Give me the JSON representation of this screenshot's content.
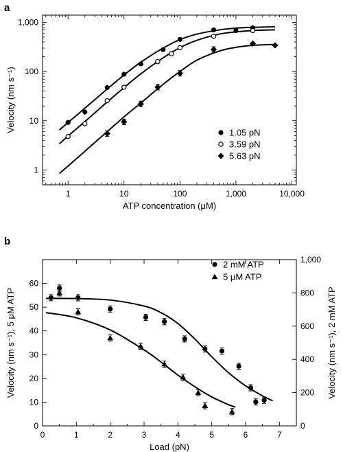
{
  "chart_data": [
    {
      "panel": "a",
      "type": "scatter",
      "xlabel": "ATP concentration (μM)",
      "ylabel": "Velocity (nm s⁻¹)",
      "x_scale": "log",
      "y_scale": "log",
      "xlim": [
        0.35,
        12000
      ],
      "ylim": [
        0.5,
        1400
      ],
      "xticks": [
        1,
        10,
        100,
        1000,
        10000
      ],
      "xtick_labels": [
        "1",
        "10",
        "100",
        "1,000",
        "10,000"
      ],
      "yticks": [
        1,
        10,
        100,
        1000
      ],
      "ytick_labels": [
        "1",
        "10",
        "100",
        "1,000"
      ],
      "legend_position": "bottom-right",
      "series": [
        {
          "name": "1.05 pN",
          "marker": "filled-circle",
          "points": [
            [
              1,
              9.2
            ],
            [
              2,
              15
            ],
            [
              5,
              47
            ],
            [
              10,
              88
            ],
            [
              20,
              143
            ],
            [
              50,
              278
            ],
            [
              100,
              450
            ],
            [
              400,
              700
            ],
            [
              1000,
              680
            ],
            [
              2000,
              770
            ]
          ],
          "fit": [
            [
              0.7,
              6.5
            ],
            [
              1,
              9.2
            ],
            [
              2,
              18
            ],
            [
              5,
              44
            ],
            [
              10,
              85
            ],
            [
              20,
              155
            ],
            [
              50,
              300
            ],
            [
              100,
              445
            ],
            [
              200,
              575
            ],
            [
              500,
              700
            ],
            [
              1000,
              760
            ],
            [
              2000,
              790
            ],
            [
              5000,
              810
            ]
          ]
        },
        {
          "name": "3.59 pN",
          "marker": "open-circle",
          "points": [
            [
              1,
              4.8
            ],
            [
              2,
              8.7
            ],
            [
              5,
              25.5
            ],
            [
              10,
              48
            ],
            [
              40,
              160
            ],
            [
              70,
              230
            ],
            [
              100,
              305
            ],
            [
              400,
              520
            ],
            [
              2000,
              680
            ]
          ],
          "fit": [
            [
              0.7,
              3.4
            ],
            [
              1,
              4.9
            ],
            [
              2,
              9.6
            ],
            [
              5,
              24
            ],
            [
              10,
              47
            ],
            [
              20,
              90
            ],
            [
              50,
              190
            ],
            [
              100,
              305
            ],
            [
              200,
              430
            ],
            [
              500,
              575
            ],
            [
              1000,
              640
            ],
            [
              2000,
              680
            ],
            [
              5000,
              705
            ]
          ]
        },
        {
          "name": "5.63 pN",
          "marker": "filled-diamond",
          "points": [
            [
              5,
              5.5
            ],
            [
              10,
              9.5
            ],
            [
              20,
              22
            ],
            [
              40,
              48
            ],
            [
              100,
              92
            ],
            [
              400,
              280
            ],
            [
              2000,
              370
            ],
            [
              5000,
              340
            ]
          ],
          "fit": [
            [
              0.7,
              0.85
            ],
            [
              1,
              1.2
            ],
            [
              2,
              2.4
            ],
            [
              5,
              6
            ],
            [
              10,
              12
            ],
            [
              20,
              23
            ],
            [
              50,
              55
            ],
            [
              100,
              100
            ],
            [
              200,
              170
            ],
            [
              500,
              260
            ],
            [
              1000,
              310
            ],
            [
              2000,
              340
            ],
            [
              5000,
              355
            ]
          ]
        }
      ]
    },
    {
      "panel": "b",
      "type": "scatter",
      "xlabel": "Load (pN)",
      "ylabel": "Velocity (nm s⁻¹), 5 μM ATP",
      "ylabel_right": "Velocity (nm s⁻¹), 2 mM ATP",
      "xlim": [
        0,
        7.5
      ],
      "ylim": [
        0,
        70
      ],
      "ylim_right": [
        0,
        1000
      ],
      "xticks": [
        0,
        1,
        2,
        3,
        4,
        5,
        6,
        7
      ],
      "yticks": [
        0,
        10,
        20,
        30,
        40,
        50,
        60
      ],
      "yticks_right": [
        0,
        200,
        400,
        600,
        800,
        1000
      ],
      "ytick_labels_right": [
        "0",
        "200",
        "400",
        "600",
        "800",
        "1,000"
      ],
      "legend_position": "top-right",
      "series": [
        {
          "name": "2 mM ATP",
          "marker": "filled-circle",
          "axis": "right",
          "points": [
            [
              0.25,
              771
            ],
            [
              0.5,
              829
            ],
            [
              1.05,
              771
            ],
            [
              2.0,
              703
            ],
            [
              3.05,
              653
            ],
            [
              3.6,
              627
            ],
            [
              4.2,
              523
            ],
            [
              4.8,
              463
            ],
            [
              5.3,
              450
            ],
            [
              5.8,
              359
            ],
            [
              6.15,
              229
            ],
            [
              6.3,
              144
            ],
            [
              6.55,
              154
            ]
          ],
          "fit": [
            [
              0.1,
              767
            ],
            [
              1,
              766
            ],
            [
              2,
              757
            ],
            [
              3,
              721
            ],
            [
              3.5,
              681
            ],
            [
              4,
              616
            ],
            [
              4.5,
              523
            ],
            [
              5,
              416
            ],
            [
              5.5,
              319
            ],
            [
              6,
              241
            ],
            [
              6.5,
              181
            ],
            [
              6.8,
              151
            ]
          ]
        },
        {
          "name": "5 μM ATP",
          "marker": "filled-triangle",
          "axis": "left",
          "points": [
            [
              0.5,
              56
            ],
            [
              1.05,
              48
            ],
            [
              2.0,
              37
            ],
            [
              2.9,
              33.5
            ],
            [
              3.6,
              26
            ],
            [
              4.15,
              20.5
            ],
            [
              4.6,
              14
            ],
            [
              4.8,
              8.5
            ],
            [
              5.6,
              6
            ]
          ],
          "fit": [
            [
              0.1,
              47.7
            ],
            [
              1,
              45.5
            ],
            [
              2,
              40.4
            ],
            [
              3,
              32
            ],
            [
              3.5,
              26.9
            ],
            [
              4,
              21.4
            ],
            [
              4.5,
              16.5
            ],
            [
              5,
              12.2
            ],
            [
              5.5,
              8.9
            ],
            [
              5.7,
              7.9
            ]
          ]
        }
      ]
    }
  ],
  "panels": {
    "a": {
      "label": "a"
    },
    "b": {
      "label": "b"
    }
  }
}
